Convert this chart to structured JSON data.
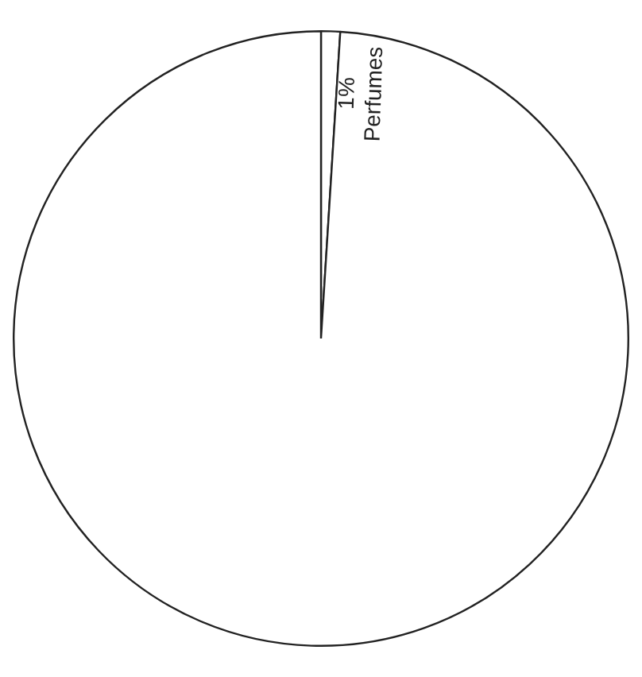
{
  "chart_data": {
    "type": "pie",
    "categories": [
      "Perfumes",
      null
    ],
    "values": [
      1,
      99
    ],
    "colors": [
      "#ffffff",
      "#ffffff"
    ],
    "value_labels": [
      "1%",
      null
    ],
    "legend": false
  }
}
